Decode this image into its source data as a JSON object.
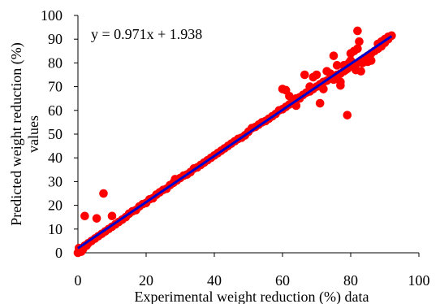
{
  "chart_data": {
    "type": "scatter",
    "xlabel": "Experimental weight reduction (%) data",
    "ylabel_lines": [
      "Predicted weight reduction (%)",
      "values"
    ],
    "equation": "y = 0.971x + 1.938",
    "xlim": [
      0,
      100
    ],
    "ylim": [
      0,
      100
    ],
    "xticks": [
      "0",
      "20",
      "40",
      "60",
      "80",
      "100"
    ],
    "yticks": [
      "0",
      "10",
      "20",
      "30",
      "40",
      "50",
      "60",
      "70",
      "80",
      "90",
      "100"
    ],
    "grid": false,
    "legend": "none",
    "colors": {
      "points": "#ff0000",
      "trendline": "#0000cc",
      "axis": "#000000"
    },
    "trendline": {
      "slope": 0.971,
      "intercept": 1.938,
      "x_range": [
        0,
        92
      ]
    },
    "points": [
      [
        0,
        0
      ],
      [
        0.5,
        0.5
      ],
      [
        1,
        1
      ],
      [
        1.5,
        1.5
      ],
      [
        0.3,
        2
      ],
      [
        1,
        0.5
      ],
      [
        2,
        3
      ],
      [
        2.5,
        3
      ],
      [
        0.5,
        1.5
      ],
      [
        2,
        15.5
      ],
      [
        5.5,
        14.5
      ],
      [
        7.5,
        25
      ],
      [
        7,
        8
      ],
      [
        10,
        15.5
      ],
      [
        3,
        4
      ],
      [
        4,
        5
      ],
      [
        5,
        6
      ],
      [
        6,
        7
      ],
      [
        8,
        9
      ],
      [
        9,
        10
      ],
      [
        10,
        11
      ],
      [
        11,
        12
      ],
      [
        12,
        13
      ],
      [
        13,
        14
      ],
      [
        14,
        15
      ],
      [
        15,
        16.5
      ],
      [
        16,
        17.5
      ],
      [
        17,
        18
      ],
      [
        18,
        19.5
      ],
      [
        19,
        20.5
      ],
      [
        20,
        21
      ],
      [
        21,
        22.5
      ],
      [
        22,
        23
      ],
      [
        23,
        24.5
      ],
      [
        24,
        25.5
      ],
      [
        25,
        26.5
      ],
      [
        26,
        27
      ],
      [
        27,
        28.5
      ],
      [
        28,
        29.5
      ],
      [
        28.5,
        31
      ],
      [
        29,
        30.5
      ],
      [
        30,
        31.5
      ],
      [
        31,
        32.5
      ],
      [
        32,
        33
      ],
      [
        33,
        34
      ],
      [
        34,
        35.5
      ],
      [
        35,
        36
      ],
      [
        36,
        37
      ],
      [
        37,
        38
      ],
      [
        38,
        39
      ],
      [
        39,
        40
      ],
      [
        40,
        41
      ],
      [
        41,
        42
      ],
      [
        42,
        43
      ],
      [
        43,
        44
      ],
      [
        44,
        45
      ],
      [
        45,
        46
      ],
      [
        46,
        47
      ],
      [
        47,
        48
      ],
      [
        48,
        48.5
      ],
      [
        49,
        49.5
      ],
      [
        50,
        51
      ],
      [
        51,
        52.5
      ],
      [
        52,
        53
      ],
      [
        53,
        54
      ],
      [
        54,
        55
      ],
      [
        55,
        55.5
      ],
      [
        56,
        56.5
      ],
      [
        57,
        57.5
      ],
      [
        58,
        58.5
      ],
      [
        59,
        60
      ],
      [
        60,
        60.5
      ],
      [
        61,
        61.5
      ],
      [
        62,
        62.5
      ],
      [
        63,
        63.5
      ],
      [
        64,
        65
      ],
      [
        65,
        65.5
      ],
      [
        66,
        66.5
      ],
      [
        67,
        67.5
      ],
      [
        68,
        68
      ],
      [
        69,
        69
      ],
      [
        70,
        70
      ],
      [
        71,
        71
      ],
      [
        72,
        72
      ],
      [
        73,
        72.5
      ],
      [
        74,
        73.5
      ],
      [
        75,
        74.5
      ],
      [
        76,
        75
      ],
      [
        77,
        75.5
      ],
      [
        78,
        76.5
      ],
      [
        79,
        77.5
      ],
      [
        80,
        78.5
      ],
      [
        81,
        79
      ],
      [
        82,
        80
      ],
      [
        83,
        81
      ],
      [
        84,
        82
      ],
      [
        85,
        83
      ],
      [
        86,
        84
      ],
      [
        87,
        85
      ],
      [
        88,
        86
      ],
      [
        89,
        87
      ],
      [
        90,
        88.5
      ],
      [
        91,
        90
      ],
      [
        92,
        91.5
      ],
      [
        60,
        69
      ],
      [
        61,
        68.5
      ],
      [
        62,
        66
      ],
      [
        66.5,
        75
      ],
      [
        69,
        74
      ],
      [
        70,
        75
      ],
      [
        71,
        63
      ],
      [
        72,
        69
      ],
      [
        73,
        76.5
      ],
      [
        75,
        83
      ],
      [
        76,
        79
      ],
      [
        77,
        70.5
      ],
      [
        77,
        72
      ],
      [
        78,
        79
      ],
      [
        78.5,
        77
      ],
      [
        79,
        58
      ],
      [
        79.5,
        80
      ],
      [
        80,
        81
      ],
      [
        80,
        84
      ],
      [
        81,
        85
      ],
      [
        81.5,
        77
      ],
      [
        82,
        93.5
      ],
      [
        82,
        86
      ],
      [
        82.5,
        89
      ],
      [
        83,
        76.5
      ],
      [
        83.5,
        80
      ],
      [
        84,
        81.5
      ],
      [
        85,
        80.5
      ],
      [
        86,
        81
      ],
      [
        88,
        88
      ],
      [
        89,
        89
      ],
      [
        90,
        90
      ],
      [
        91,
        91
      ],
      [
        75,
        73
      ],
      [
        74,
        75.5
      ],
      [
        68,
        70
      ],
      [
        65,
        65
      ],
      [
        64,
        62
      ]
    ]
  }
}
